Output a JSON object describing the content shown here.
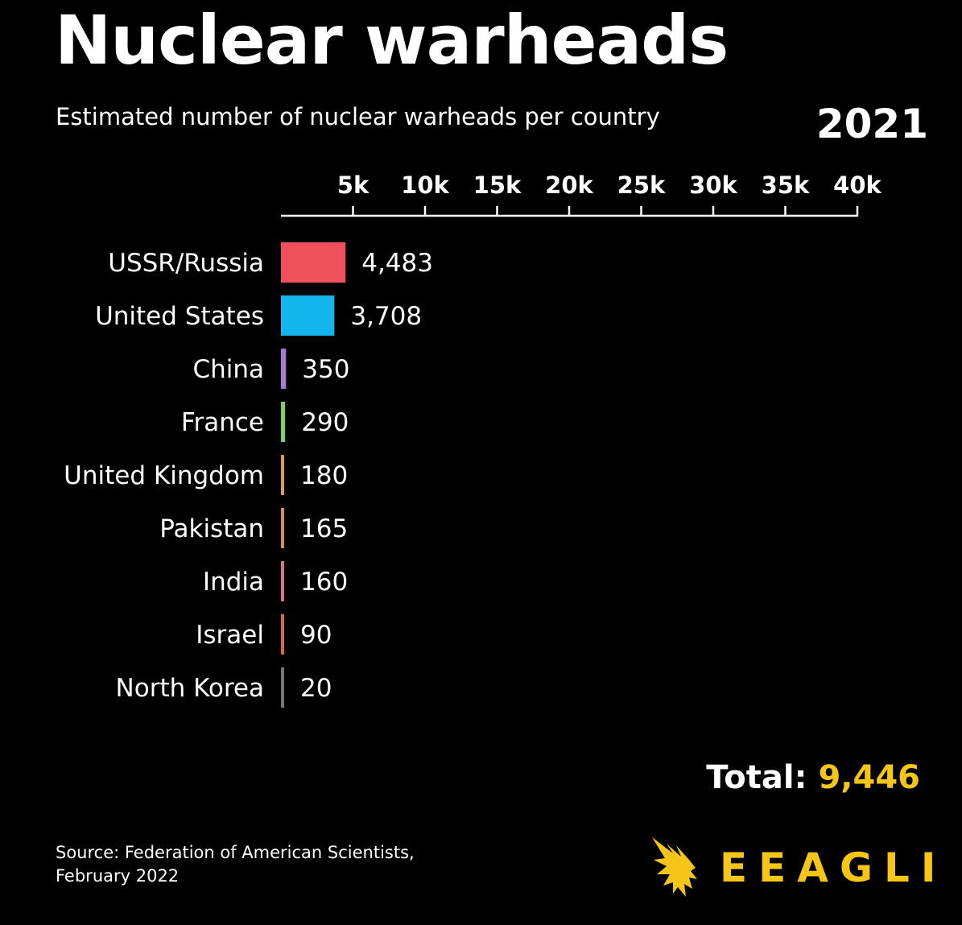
{
  "header": {
    "title": "Nuclear warheads",
    "subtitle": "Estimated number of nuclear warheads per country",
    "year": "2021"
  },
  "footer": {
    "total_label": "Total:",
    "total_value": "9,446",
    "source_line1": "Source: Federation of American Scientists,",
    "source_line2": "February 2022",
    "logo_text": "EEAGLI",
    "logo_icon": "eagle-icon"
  },
  "colors": {
    "background": "#000000",
    "text": "#ffffff",
    "accent": "#f5c518"
  },
  "chart_data": {
    "type": "bar",
    "orientation": "horizontal",
    "title": "Nuclear warheads",
    "subtitle": "Estimated number of nuclear warheads per country",
    "xlim": [
      0,
      40000
    ],
    "ticks": [
      {
        "value": 5000,
        "label": "5k"
      },
      {
        "value": 10000,
        "label": "10k"
      },
      {
        "value": 15000,
        "label": "15k"
      },
      {
        "value": 20000,
        "label": "20k"
      },
      {
        "value": 25000,
        "label": "25k"
      },
      {
        "value": 30000,
        "label": "30k"
      },
      {
        "value": 35000,
        "label": "35k"
      },
      {
        "value": 40000,
        "label": "40k"
      }
    ],
    "axis_position": "top",
    "grid": false,
    "categories": [
      "USSR/Russia",
      "United States",
      "China",
      "France",
      "United Kingdom",
      "Pakistan",
      "India",
      "Israel",
      "North Korea"
    ],
    "values": [
      4483,
      3708,
      350,
      290,
      180,
      165,
      160,
      90,
      20
    ],
    "value_labels": [
      "4,483",
      "3,708",
      "350",
      "290",
      "180",
      "165",
      "160",
      "90",
      "20"
    ],
    "colors": [
      "#f0505e",
      "#14b4ec",
      "#a57bd1",
      "#7ecf6a",
      "#e0a040",
      "#d88a66",
      "#d8729a",
      "#d86a4a",
      "#777777"
    ]
  }
}
